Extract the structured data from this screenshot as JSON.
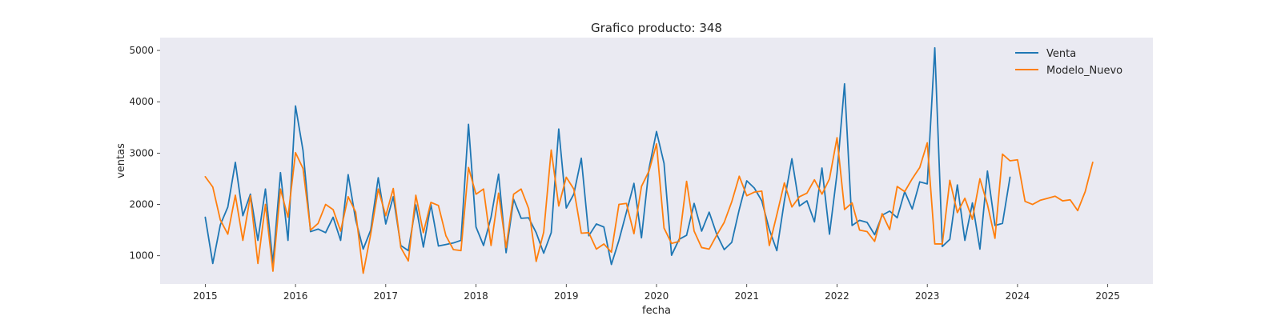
{
  "chart_data": {
    "type": "line",
    "title": "Grafico producto: 348",
    "xlabel": "fecha",
    "ylabel": "ventas",
    "xlim": [
      "2014-07",
      "2025-07"
    ],
    "ylim": [
      450,
      5250
    ],
    "x_ticks": [
      "2015",
      "2016",
      "2017",
      "2018",
      "2019",
      "2020",
      "2021",
      "2022",
      "2023",
      "2024",
      "2025"
    ],
    "y_ticks": [
      1000,
      2000,
      3000,
      4000,
      5000
    ],
    "grid": false,
    "background": "#eaeaf2",
    "legend_position": "top-right",
    "series": [
      {
        "name": "Venta",
        "color": "#1f77b4",
        "start": "2015-01",
        "values": [
          1750,
          850,
          1600,
          1950,
          2820,
          1780,
          2200,
          1300,
          2300,
          850,
          2620,
          1300,
          3920,
          3050,
          1470,
          1520,
          1450,
          1750,
          1300,
          2580,
          1700,
          1130,
          1500,
          2520,
          1620,
          2150,
          1200,
          1100,
          1990,
          1170,
          2000,
          1190,
          1220,
          1250,
          1300,
          3560,
          1560,
          1200,
          1750,
          2590,
          1060,
          2100,
          1730,
          1740,
          1450,
          1050,
          1450,
          3470,
          1930,
          2200,
          2900,
          1390,
          1620,
          1560,
          830,
          1300,
          1850,
          2410,
          1350,
          2700,
          3420,
          2800,
          1010,
          1320,
          1400,
          2020,
          1480,
          1850,
          1420,
          1120,
          1260,
          1900,
          2460,
          2320,
          2070,
          1510,
          1100,
          2070,
          2890,
          1970,
          2070,
          1660,
          2710,
          1420,
          2600,
          4350,
          1590,
          1690,
          1650,
          1410,
          1790,
          1870,
          1740,
          2250,
          1910,
          2440,
          2400,
          5050,
          1180,
          1320,
          2380,
          1300,
          2030,
          1130,
          2650,
          1590,
          1630,
          2530
        ]
      },
      {
        "name": "Modelo_Nuevo",
        "color": "#ff7f0e",
        "start": "2015-01",
        "values": [
          2540,
          2340,
          1700,
          1420,
          2180,
          1300,
          2170,
          850,
          2000,
          700,
          2300,
          1750,
          3010,
          2700,
          1500,
          1630,
          2000,
          1900,
          1480,
          2150,
          1850,
          660,
          1420,
          2300,
          1780,
          2310,
          1160,
          900,
          2180,
          1450,
          2040,
          1980,
          1390,
          1120,
          1100,
          2720,
          2200,
          2300,
          1200,
          2220,
          1160,
          2200,
          2300,
          1920,
          890,
          1460,
          3060,
          1970,
          2530,
          2300,
          1440,
          1450,
          1130,
          1230,
          1070,
          2000,
          2020,
          1430,
          2350,
          2650,
          3180,
          1540,
          1240,
          1280,
          2450,
          1480,
          1160,
          1130,
          1400,
          1650,
          2050,
          2550,
          2170,
          2240,
          2260,
          1200,
          1800,
          2420,
          1950,
          2150,
          2220,
          2480,
          2200,
          2500,
          3300,
          1900,
          2030,
          1500,
          1470,
          1280,
          1820,
          1510,
          2350,
          2250,
          2500,
          2720,
          3200,
          1230,
          1230,
          2470,
          1840,
          2120,
          1710,
          2500,
          2000,
          1340,
          2980,
          2850,
          2870,
          2060,
          2000,
          2080,
          2120,
          2160,
          2070,
          2090,
          1880,
          2250,
          2820
        ]
      }
    ]
  }
}
